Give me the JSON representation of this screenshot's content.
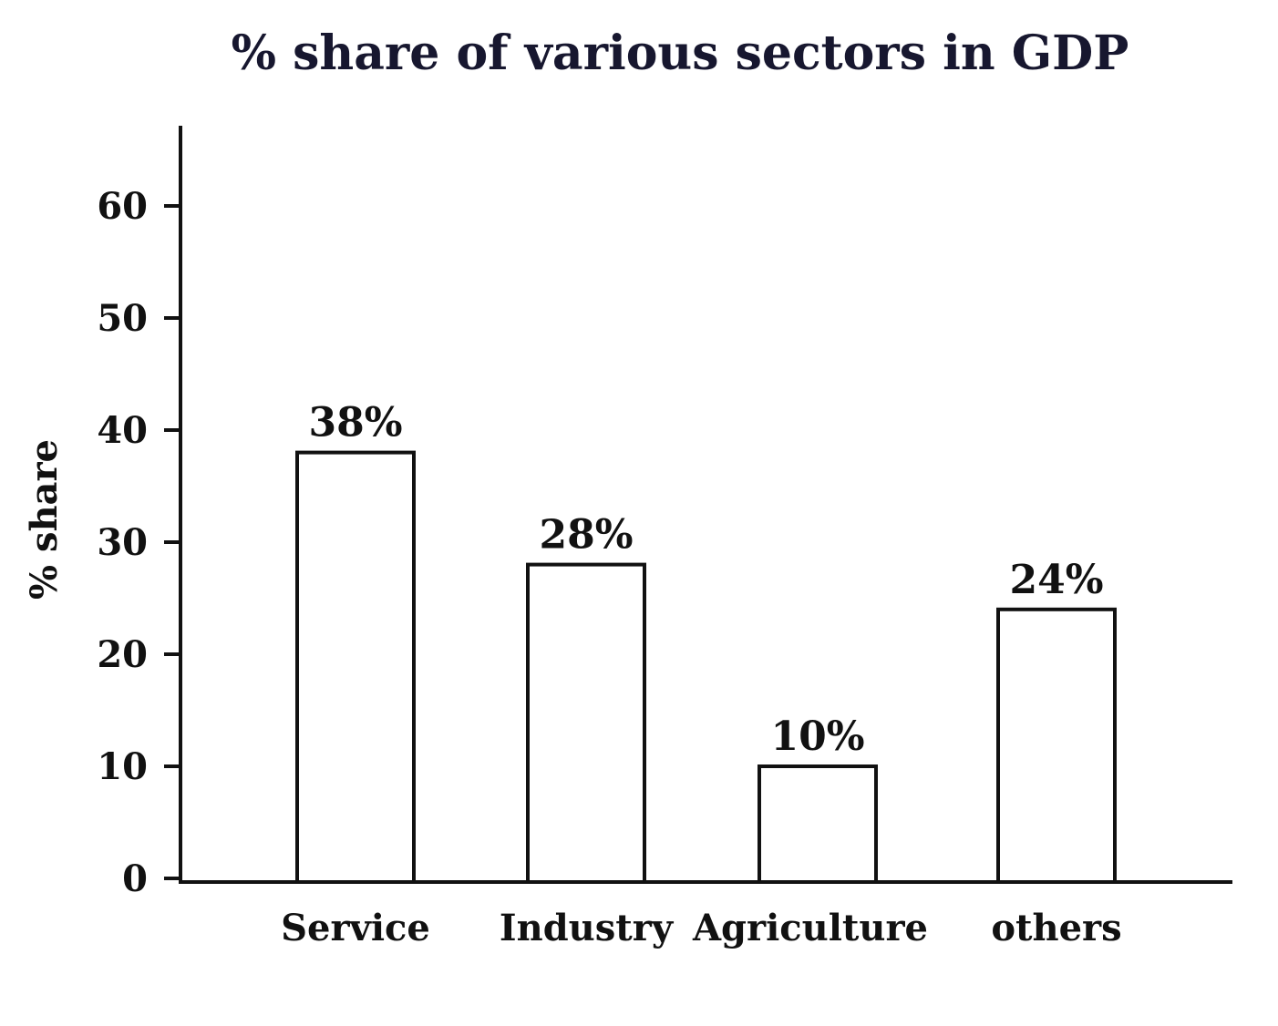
{
  "chart_data": {
    "type": "bar",
    "title": "% share of various sectors in GDP",
    "xlabel": "",
    "ylabel": "% share",
    "categories": [
      "Service",
      "Industry",
      "Agriculture",
      "others"
    ],
    "values": [
      38,
      28,
      10,
      24
    ],
    "data_labels": [
      "38%",
      "28%",
      "10%",
      "24%"
    ],
    "yticks": [
      0,
      10,
      20,
      30,
      40,
      50,
      60
    ],
    "ylim": [
      0,
      67
    ],
    "grid": false,
    "legend": "none",
    "colors": {
      "bar_fill": "#ffffff",
      "bar_stroke": "#111111",
      "axis": "#111111",
      "title": "#17172f"
    }
  }
}
